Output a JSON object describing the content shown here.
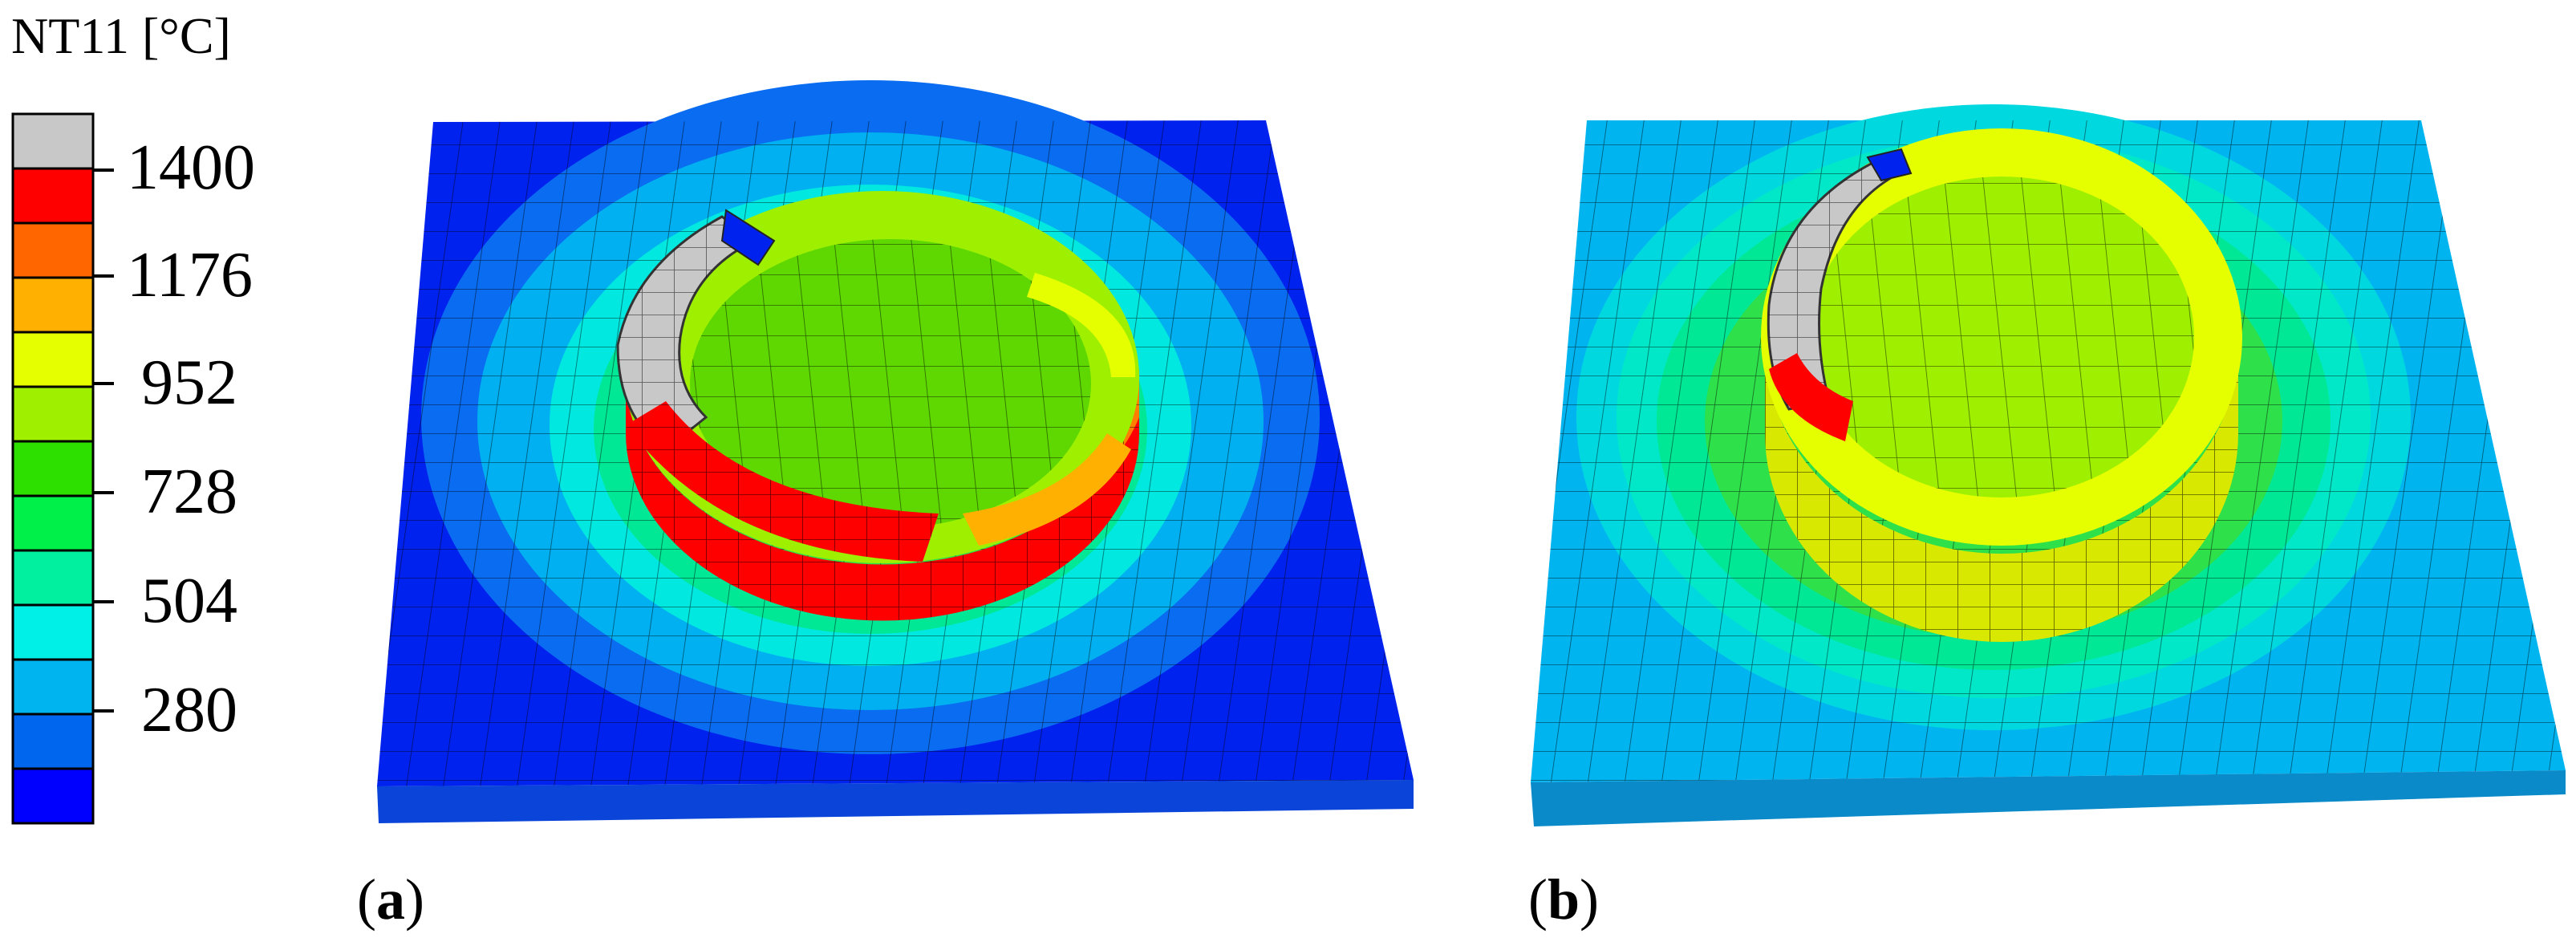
{
  "legend": {
    "title": "NT11 [°C]",
    "labels": [
      "1400",
      "1176",
      "952",
      "728",
      "504",
      "280"
    ],
    "colors": [
      "#c8c8c8",
      "#ff0000",
      "#ff6600",
      "#ffb000",
      "#e6ff00",
      "#9ef000",
      "#2ee000",
      "#00f04a",
      "#00f0a0",
      "#00f0e8",
      "#00b4f0",
      "#0066ee",
      "#0000ff"
    ]
  },
  "panels": [
    {
      "label": "a",
      "plate_color": "#0055e6",
      "description": "Temperature field with hot crescent wall"
    },
    {
      "label": "b",
      "plate_color": "#12c8c8",
      "description": "Temperature field with yellow ring wall"
    }
  ]
}
